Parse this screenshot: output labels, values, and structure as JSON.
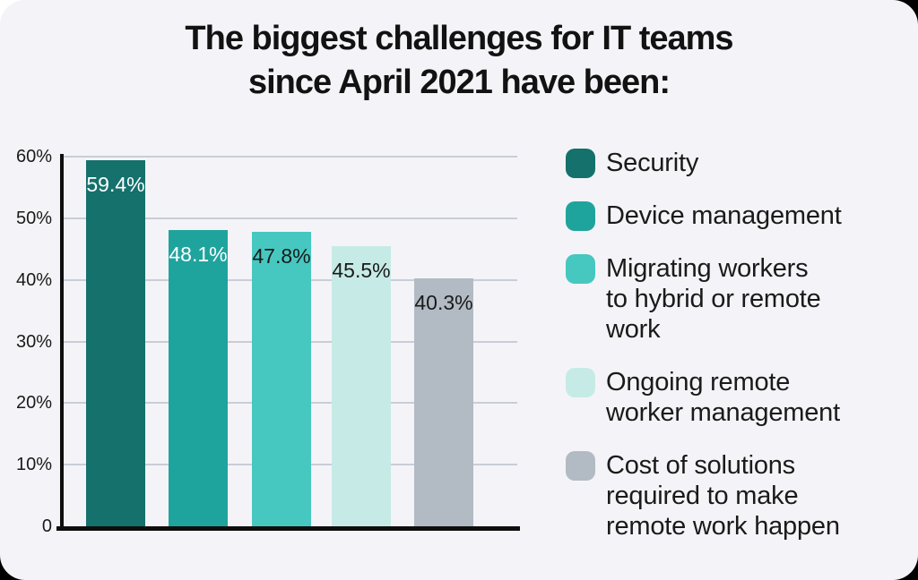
{
  "title": {
    "line1": "The biggest challenges for IT teams",
    "line2": "since April 2021 have been:"
  },
  "chart_data": {
    "type": "bar",
    "title": "The biggest challenges for IT teams since April 2021 have been:",
    "categories": [
      "Security",
      "Device management",
      "Migrating workers to hybrid or remote work",
      "Ongoing remote worker management",
      "Cost of solutions required to make remote work happen"
    ],
    "values": [
      59.4,
      48.1,
      47.8,
      45.5,
      40.3
    ],
    "value_labels": [
      "59.4%",
      "48.1%",
      "47.8%",
      "45.5%",
      "40.3%"
    ],
    "bar_colors": [
      "#14716C",
      "#1FA49D",
      "#46C8C0",
      "#C6EBE6",
      "#B2BBC3"
    ],
    "value_label_colors": [
      "#FFFFFF",
      "#FFFFFF",
      "#1A1A1A",
      "#1A1A1A",
      "#1A1A1A"
    ],
    "xlabel": "",
    "ylabel": "",
    "ylim": [
      0,
      60
    ],
    "yticks": [
      {
        "value": 60,
        "label": "60%"
      },
      {
        "value": 50,
        "label": "50%"
      },
      {
        "value": 40,
        "label": "40%"
      },
      {
        "value": 30,
        "label": "30%"
      },
      {
        "value": 20,
        "label": "20%"
      },
      {
        "value": 10,
        "label": "10%"
      },
      {
        "value": 0,
        "label": "0"
      }
    ],
    "grid": true,
    "legend_position": "right",
    "legend": [
      {
        "color": "#14716C",
        "lines": [
          "Security"
        ]
      },
      {
        "color": "#1FA49D",
        "lines": [
          "Device management"
        ]
      },
      {
        "color": "#46C8C0",
        "lines": [
          "Migrating workers",
          "to hybrid or remote",
          "work"
        ]
      },
      {
        "color": "#C6EBE6",
        "lines": [
          "Ongoing remote",
          "worker management"
        ]
      },
      {
        "color": "#B2BBC3",
        "lines": [
          "Cost of solutions",
          "required to make",
          "remote work happen"
        ]
      }
    ]
  },
  "colors": {
    "outside_background": "#000000",
    "corner_patch": "#FFFFFF",
    "card_background": "#F4F4F8",
    "gridline": "#C9CDD7",
    "axis": "#0E0E0E",
    "title_text": "#121212",
    "tick_text": "#1A1A1A",
    "legend_text": "#1A1A1A"
  }
}
